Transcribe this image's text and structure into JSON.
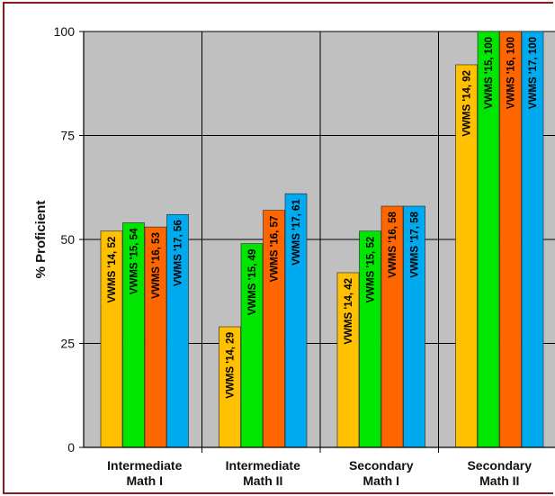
{
  "chart_data": {
    "type": "bar",
    "title": "",
    "xlabel": "",
    "ylabel": "% Proficient",
    "ylim": [
      0,
      100
    ],
    "yticks": [
      0,
      25,
      50,
      75,
      100
    ],
    "grid": true,
    "legend": "none",
    "plot_background": "#c0c0c0",
    "frame_color": "#8b1a1a",
    "categories": [
      {
        "line1": "Intermediate",
        "line2": "Math I"
      },
      {
        "line1": "Intermediate",
        "line2": "Math II"
      },
      {
        "line1": "Secondary",
        "line2": "Math I"
      },
      {
        "line1": "Secondary",
        "line2": "Math II"
      }
    ],
    "series": [
      {
        "name": "VWMS '14",
        "color": "#ffc000",
        "values": [
          52,
          29,
          42,
          92
        ],
        "labels": [
          "VWMS '14, 52",
          "VWMS '14, 29",
          "VWMS '14, 42",
          "VWMS '14, 92"
        ]
      },
      {
        "name": "VWMS '15",
        "color": "#00e600",
        "values": [
          54,
          49,
          52,
          100
        ],
        "labels": [
          "VWMS '15, 54",
          "VWMS '15, 49",
          "VWMS '15, 52",
          "VWMS '15, 100"
        ]
      },
      {
        "name": "VWMS '16",
        "color": "#ff6600",
        "values": [
          53,
          57,
          58,
          100
        ],
        "labels": [
          "VWMS '16, 53",
          "VWMS '16, 57",
          "VWMS '16, 58",
          "VWMS '16, 100"
        ]
      },
      {
        "name": "VWMS '17",
        "color": "#00aaee",
        "values": [
          56,
          61,
          58,
          100
        ],
        "labels": [
          "VWMS '17, 56",
          "VWMS '17, 61",
          "VWMS '17, 58",
          "VWMS '17, 100"
        ]
      }
    ]
  }
}
